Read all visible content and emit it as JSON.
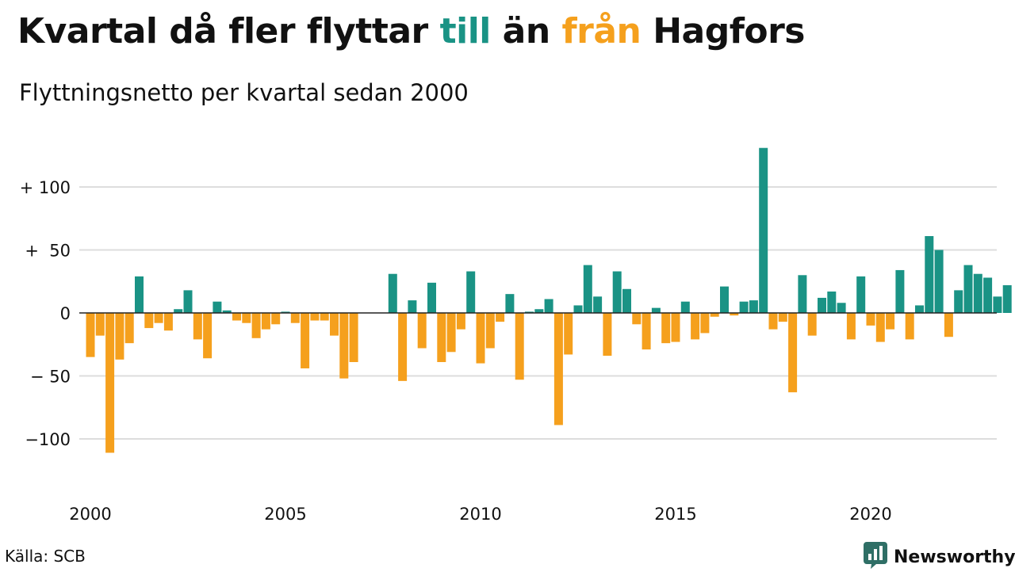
{
  "title": {
    "part1": "Kvartal då fler flyttar ",
    "highlight1": "till",
    "part2": " än ",
    "highlight2": "från",
    "part3": " Hagfors"
  },
  "subtitle": "Flyttningsnetto per kvartal sedan 2000",
  "source": "Källa: SCB",
  "brand": {
    "name": "Newsworthy",
    "icon": "bar-chart-logo-icon"
  },
  "colors": {
    "positive": "#1a9385",
    "negative": "#f5a01d",
    "grid": "#dddddd",
    "baseline": "#222222"
  },
  "chart_data": {
    "type": "bar",
    "xlabel": "",
    "ylabel": "",
    "ylim": [
      -130,
      135
    ],
    "yticks": [
      100,
      50,
      0,
      -50,
      -100
    ],
    "ytick_labels": [
      "+ 100",
      "+  50",
      "0",
      "− 50",
      "−100"
    ],
    "xtick_labels": [
      "2000",
      "2005",
      "2010",
      "2015",
      "2020"
    ],
    "xtick_years": [
      2000,
      2005,
      2010,
      2015,
      2020
    ],
    "start_year": 2000,
    "grid": true,
    "values": [
      -35,
      -18,
      -111,
      -37,
      -24,
      29,
      -12,
      -8,
      -14,
      3,
      18,
      -21,
      -36,
      9,
      2,
      -6,
      -8,
      -20,
      -13,
      -9,
      1,
      -8,
      -44,
      -6,
      -6,
      -18,
      -52,
      -39,
      0,
      0,
      0,
      31,
      -54,
      10,
      -28,
      24,
      -39,
      -31,
      -13,
      33,
      -40,
      -28,
      -7,
      15,
      -53,
      1,
      3,
      11,
      -89,
      -33,
      6,
      38,
      13,
      -34,
      33,
      19,
      -9,
      -29,
      4,
      -24,
      -23,
      9,
      -21,
      -16,
      -3,
      21,
      -2,
      9,
      10,
      131,
      -13,
      -7,
      -63,
      30,
      -18,
      12,
      17,
      8,
      -21,
      29,
      -10,
      -23,
      -13,
      34,
      -21,
      6,
      61,
      50,
      -19,
      18,
      38,
      31,
      28,
      13,
      22
    ]
  }
}
